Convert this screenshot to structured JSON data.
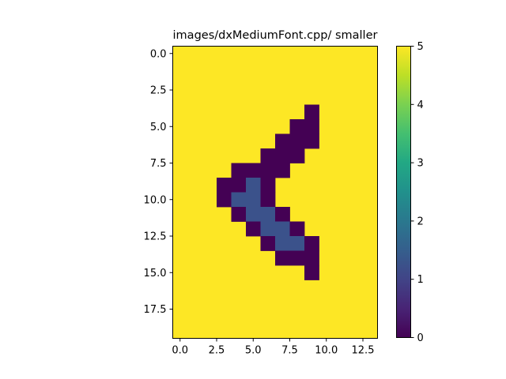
{
  "chart_data": {
    "type": "heatmap",
    "title": "images/dxMediumFont.cpp/ smaller",
    "xlabel": "",
    "ylabel": "",
    "rows": 20,
    "cols": 14,
    "background_value": 5,
    "cells": [
      {
        "x": 9,
        "y": 4,
        "v": 0
      },
      {
        "x": 8,
        "y": 5,
        "v": 0
      },
      {
        "x": 9,
        "y": 5,
        "v": 0
      },
      {
        "x": 7,
        "y": 6,
        "v": 0
      },
      {
        "x": 8,
        "y": 6,
        "v": 0
      },
      {
        "x": 9,
        "y": 6,
        "v": 0
      },
      {
        "x": 6,
        "y": 7,
        "v": 0
      },
      {
        "x": 7,
        "y": 7,
        "v": 0
      },
      {
        "x": 8,
        "y": 7,
        "v": 0
      },
      {
        "x": 4,
        "y": 8,
        "v": 0
      },
      {
        "x": 5,
        "y": 8,
        "v": 0
      },
      {
        "x": 6,
        "y": 8,
        "v": 0
      },
      {
        "x": 7,
        "y": 8,
        "v": 0
      },
      {
        "x": 3,
        "y": 9,
        "v": 0
      },
      {
        "x": 4,
        "y": 9,
        "v": 0
      },
      {
        "x": 5,
        "y": 9,
        "v": 1
      },
      {
        "x": 6,
        "y": 9,
        "v": 0
      },
      {
        "x": 3,
        "y": 10,
        "v": 0
      },
      {
        "x": 4,
        "y": 10,
        "v": 1
      },
      {
        "x": 5,
        "y": 10,
        "v": 1
      },
      {
        "x": 6,
        "y": 10,
        "v": 0
      },
      {
        "x": 4,
        "y": 11,
        "v": 0
      },
      {
        "x": 5,
        "y": 11,
        "v": 1
      },
      {
        "x": 6,
        "y": 11,
        "v": 1
      },
      {
        "x": 7,
        "y": 11,
        "v": 0
      },
      {
        "x": 5,
        "y": 12,
        "v": 0
      },
      {
        "x": 6,
        "y": 12,
        "v": 1
      },
      {
        "x": 7,
        "y": 12,
        "v": 1
      },
      {
        "x": 8,
        "y": 12,
        "v": 0
      },
      {
        "x": 6,
        "y": 13,
        "v": 0
      },
      {
        "x": 7,
        "y": 13,
        "v": 1
      },
      {
        "x": 8,
        "y": 13,
        "v": 1
      },
      {
        "x": 9,
        "y": 13,
        "v": 0
      },
      {
        "x": 7,
        "y": 14,
        "v": 0
      },
      {
        "x": 8,
        "y": 14,
        "v": 0
      },
      {
        "x": 9,
        "y": 14,
        "v": 0
      },
      {
        "x": 9,
        "y": 15,
        "v": 0
      }
    ],
    "x_ticks": [
      "0.0",
      "2.5",
      "5.0",
      "7.5",
      "10.0",
      "12.5"
    ],
    "y_ticks": [
      "0.0",
      "2.5",
      "5.0",
      "7.5",
      "10.0",
      "12.5",
      "15.0",
      "17.5"
    ],
    "colorbar": {
      "min": 0,
      "max": 5,
      "colormap": "viridis",
      "ticks": [
        "0",
        "1",
        "2",
        "3",
        "4",
        "5"
      ]
    },
    "colors": {
      "v0": "#440154",
      "v1": "#3b528b",
      "v5": "#fde725"
    }
  }
}
